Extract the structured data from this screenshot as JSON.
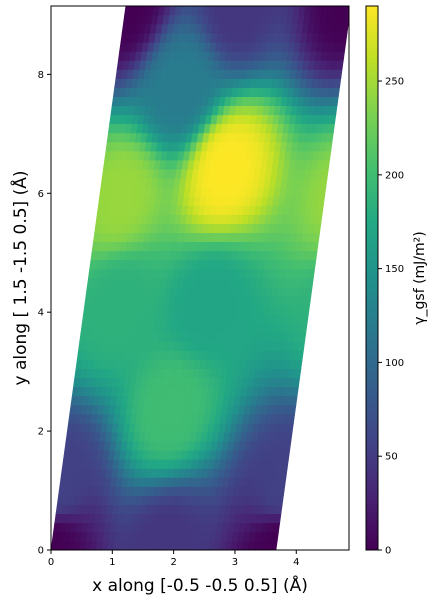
{
  "chart_data": {
    "type": "heatmap",
    "xlabel": "x along [-0.5 -0.5  0.5] (Å)",
    "ylabel": "y along [ 1.5 -1.5  0.5] (Å)",
    "colorbar_label": "γ_gsf (mJ/m²)",
    "xlim": [
      0,
      4.86
    ],
    "ylim": [
      0,
      9.15
    ],
    "x_ticks": [
      0,
      1,
      2,
      3,
      4
    ],
    "y_ticks": [
      0,
      2,
      4,
      6,
      8
    ],
    "colorbar_ticks": [
      0,
      50,
      100,
      150,
      200,
      250
    ],
    "colorbar_range": [
      0,
      290
    ],
    "colormap": "viridis",
    "cell_lattice": {
      "a": [
        3.67,
        0
      ],
      "b": [
        1.22,
        9.15
      ]
    },
    "grid_points": [
      {
        "u": 0.0,
        "v": 0.0,
        "value": 0
      },
      {
        "u": 0.5,
        "v": 0.0,
        "value": 45
      },
      {
        "u": 0.0,
        "v": 0.12,
        "value": 55
      },
      {
        "u": 0.45,
        "v": 0.26,
        "value": 200
      },
      {
        "u": 0.15,
        "v": 0.45,
        "value": 185
      },
      {
        "u": 0.55,
        "v": 0.45,
        "value": 170
      },
      {
        "u": 0.1,
        "v": 0.65,
        "value": 245
      },
      {
        "u": 0.55,
        "v": 0.7,
        "value": 290
      },
      {
        "u": 0.3,
        "v": 0.85,
        "value": 120
      },
      {
        "u": 0.0,
        "v": 1.0,
        "value": 0
      },
      {
        "u": 0.5,
        "v": 1.0,
        "value": 45
      }
    ]
  }
}
